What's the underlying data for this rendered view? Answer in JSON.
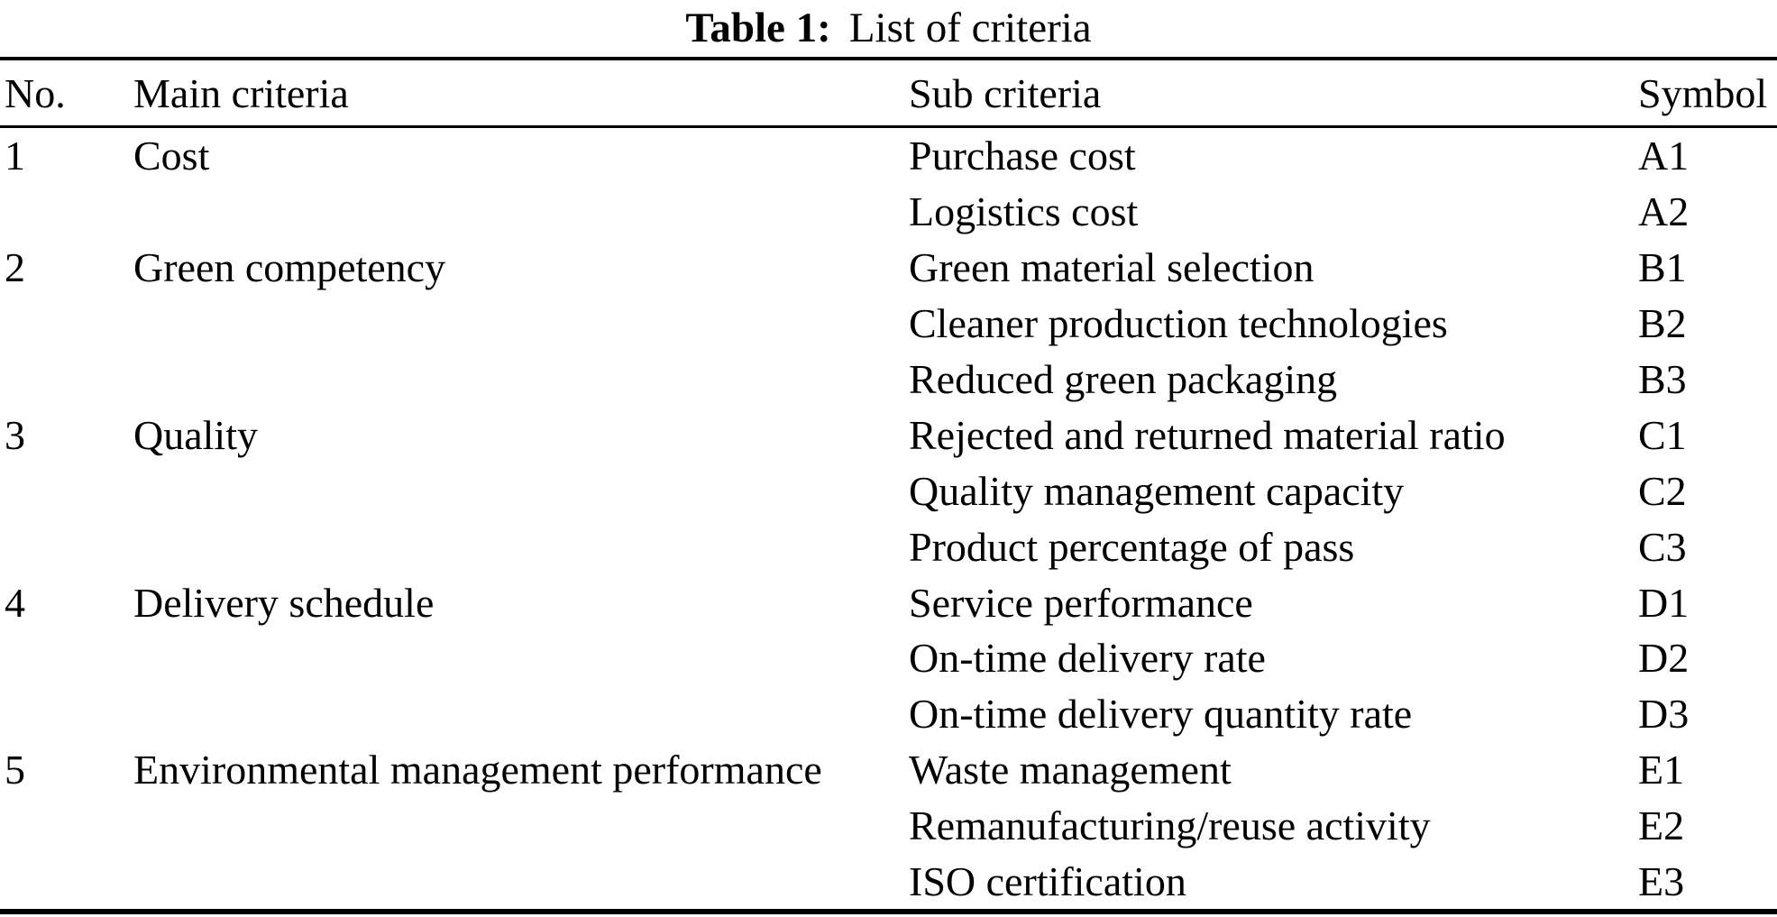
{
  "caption": {
    "label": "Table 1:",
    "title": "List of criteria"
  },
  "colors": {
    "text": "#000000",
    "background": "#ffffff",
    "rule": "#000000"
  },
  "table": {
    "headers": [
      "No.",
      "Main criteria",
      "Sub criteria",
      "Symbol"
    ],
    "rows": [
      {
        "no": "1",
        "main": "Cost",
        "sub": "Purchase cost",
        "symbol": "A1"
      },
      {
        "no": "",
        "main": "",
        "sub": "Logistics cost",
        "symbol": "A2"
      },
      {
        "no": "2",
        "main": "Green competency",
        "sub": "Green material selection",
        "symbol": "B1"
      },
      {
        "no": "",
        "main": "",
        "sub": "Cleaner production technologies",
        "symbol": "B2"
      },
      {
        "no": "",
        "main": "",
        "sub": "Reduced green packaging",
        "symbol": "B3"
      },
      {
        "no": "3",
        "main": "Quality",
        "sub": "Rejected and returned material ratio",
        "symbol": "C1"
      },
      {
        "no": "",
        "main": "",
        "sub": "Quality management capacity",
        "symbol": "C2"
      },
      {
        "no": "",
        "main": "",
        "sub": "Product percentage of pass",
        "symbol": "C3"
      },
      {
        "no": "4",
        "main": "Delivery schedule",
        "sub": "Service performance",
        "symbol": "D1"
      },
      {
        "no": "",
        "main": "",
        "sub": "On-time delivery rate",
        "symbol": "D2"
      },
      {
        "no": "",
        "main": "",
        "sub": "On-time delivery quantity rate",
        "symbol": "D3"
      },
      {
        "no": "5",
        "main": "Environmental management performance",
        "sub": "Waste management",
        "symbol": "E1"
      },
      {
        "no": "",
        "main": "",
        "sub": "Remanufacturing/reuse activity",
        "symbol": "E2"
      },
      {
        "no": "",
        "main": "",
        "sub": "ISO certification",
        "symbol": "E3"
      }
    ]
  }
}
